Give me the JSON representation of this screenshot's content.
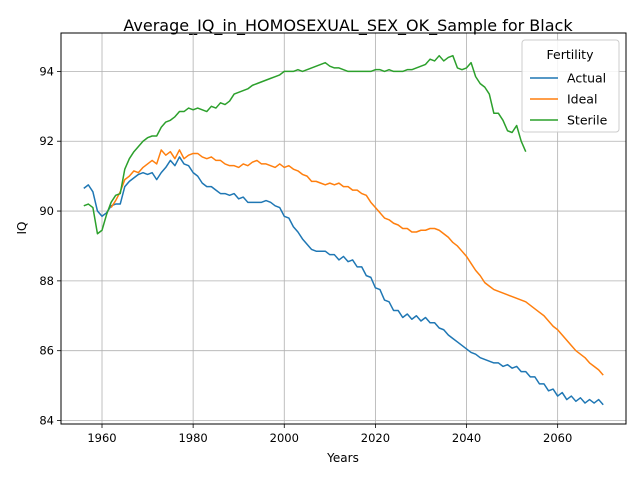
{
  "chart_data": {
    "type": "line",
    "title": "Average_IQ_in_HOMOSEXUAL_SEX_OK_Sample for Black",
    "xlabel": "Years",
    "ylabel": "IQ",
    "xlim": [
      1951,
      2075
    ],
    "ylim": [
      83.9,
      95.1
    ],
    "xticks": [
      1960,
      1980,
      2000,
      2020,
      2040,
      2060
    ],
    "yticks": [
      84,
      86,
      88,
      90,
      92,
      94
    ],
    "grid": true,
    "legend": {
      "title": "Fertility",
      "placement": "top-right"
    },
    "series": [
      {
        "name": "Actual",
        "color": "#1f77b4",
        "x": [
          1956,
          1957,
          1958,
          1959,
          1960,
          1961,
          1962,
          1963,
          1964,
          1965,
          1966,
          1967,
          1968,
          1969,
          1970,
          1971,
          1972,
          1973,
          1974,
          1975,
          1976,
          1977,
          1978,
          1979,
          1980,
          1981,
          1982,
          1983,
          1984,
          1985,
          1986,
          1987,
          1988,
          1989,
          1990,
          1991,
          1992,
          1993,
          1994,
          1995,
          1996,
          1997,
          1998,
          1999,
          2000,
          2001,
          2002,
          2003,
          2004,
          2005,
          2006,
          2007,
          2008,
          2009,
          2010,
          2011,
          2012,
          2013,
          2014,
          2015,
          2016,
          2017,
          2018,
          2019,
          2020,
          2021,
          2022,
          2023,
          2024,
          2025,
          2026,
          2027,
          2028,
          2029,
          2030,
          2031,
          2032,
          2033,
          2034,
          2035,
          2036,
          2037,
          2038,
          2039,
          2040,
          2041,
          2042,
          2043,
          2044,
          2045,
          2046,
          2047,
          2048,
          2049,
          2050,
          2051,
          2052,
          2053,
          2054,
          2055,
          2056,
          2057,
          2058,
          2059,
          2060,
          2061,
          2062,
          2063,
          2064,
          2065,
          2066,
          2067,
          2068,
          2069,
          2070
        ],
        "values": [
          90.65,
          90.75,
          90.55,
          90.0,
          89.85,
          89.95,
          90.15,
          90.2,
          90.2,
          90.7,
          90.85,
          90.95,
          91.05,
          91.1,
          91.05,
          91.1,
          90.9,
          91.1,
          91.25,
          91.45,
          91.3,
          91.55,
          91.35,
          91.3,
          91.1,
          91.0,
          90.8,
          90.7,
          90.7,
          90.6,
          90.5,
          90.5,
          90.45,
          90.5,
          90.35,
          90.4,
          90.25,
          90.25,
          90.25,
          90.25,
          90.3,
          90.25,
          90.15,
          90.1,
          89.85,
          89.8,
          89.55,
          89.4,
          89.2,
          89.05,
          88.9,
          88.85,
          88.85,
          88.85,
          88.75,
          88.75,
          88.6,
          88.7,
          88.55,
          88.6,
          88.4,
          88.4,
          88.15,
          88.1,
          87.8,
          87.75,
          87.45,
          87.4,
          87.15,
          87.15,
          86.95,
          87.05,
          86.9,
          87.0,
          86.85,
          86.95,
          86.8,
          86.8,
          86.65,
          86.6,
          86.45,
          86.35,
          86.25,
          86.15,
          86.05,
          85.95,
          85.9,
          85.8,
          85.75,
          85.7,
          85.65,
          85.65,
          85.55,
          85.6,
          85.5,
          85.55,
          85.4,
          85.4,
          85.25,
          85.25,
          85.05,
          85.05,
          84.85,
          84.9,
          84.7,
          84.8,
          84.6,
          84.7,
          84.55,
          84.65,
          84.5,
          84.6,
          84.5,
          84.6,
          84.45
        ]
      },
      {
        "name": "Ideal",
        "color": "#ff7f0e",
        "x": [
          1962,
          1963,
          1964,
          1965,
          1966,
          1967,
          1968,
          1969,
          1970,
          1971,
          1972,
          1973,
          1974,
          1975,
          1976,
          1977,
          1978,
          1979,
          1980,
          1981,
          1982,
          1983,
          1984,
          1985,
          1986,
          1987,
          1988,
          1989,
          1990,
          1991,
          1992,
          1993,
          1994,
          1995,
          1996,
          1997,
          1998,
          1999,
          2000,
          2001,
          2002,
          2003,
          2004,
          2005,
          2006,
          2007,
          2008,
          2009,
          2010,
          2011,
          2012,
          2013,
          2014,
          2015,
          2016,
          2017,
          2018,
          2019,
          2020,
          2021,
          2022,
          2023,
          2024,
          2025,
          2026,
          2027,
          2028,
          2029,
          2030,
          2031,
          2032,
          2033,
          2034,
          2035,
          2036,
          2037,
          2038,
          2039,
          2040,
          2041,
          2042,
          2043,
          2044,
          2045,
          2046,
          2047,
          2048,
          2049,
          2050,
          2051,
          2052,
          2053,
          2054,
          2055,
          2056,
          2057,
          2058,
          2059,
          2060,
          2061,
          2062,
          2063,
          2064,
          2065,
          2066,
          2067,
          2068,
          2069,
          2070
        ],
        "values": [
          90.1,
          90.3,
          90.55,
          90.9,
          91.0,
          91.15,
          91.1,
          91.25,
          91.35,
          91.45,
          91.35,
          91.75,
          91.6,
          91.7,
          91.5,
          91.75,
          91.5,
          91.6,
          91.65,
          91.65,
          91.55,
          91.5,
          91.55,
          91.45,
          91.45,
          91.35,
          91.3,
          91.3,
          91.25,
          91.35,
          91.3,
          91.4,
          91.45,
          91.35,
          91.35,
          91.3,
          91.25,
          91.35,
          91.25,
          91.3,
          91.2,
          91.15,
          91.05,
          91.0,
          90.85,
          90.85,
          90.8,
          90.75,
          90.8,
          90.75,
          90.8,
          90.7,
          90.7,
          90.6,
          90.6,
          90.5,
          90.45,
          90.25,
          90.1,
          89.95,
          89.8,
          89.75,
          89.65,
          89.6,
          89.5,
          89.5,
          89.4,
          89.4,
          89.45,
          89.45,
          89.5,
          89.5,
          89.45,
          89.35,
          89.25,
          89.1,
          89.0,
          88.85,
          88.7,
          88.5,
          88.3,
          88.15,
          87.95,
          87.85,
          87.75,
          87.7,
          87.65,
          87.6,
          87.55,
          87.5,
          87.45,
          87.4,
          87.3,
          87.2,
          87.1,
          87.0,
          86.85,
          86.7,
          86.6,
          86.45,
          86.3,
          86.15,
          86.0,
          85.9,
          85.8,
          85.65,
          85.55,
          85.45,
          85.3
        ]
      },
      {
        "name": "Sterile",
        "color": "#2ca02c",
        "x": [
          1956,
          1957,
          1958,
          1959,
          1960,
          1961,
          1962,
          1963,
          1964,
          1965,
          1966,
          1967,
          1968,
          1969,
          1970,
          1971,
          1972,
          1973,
          1974,
          1975,
          1976,
          1977,
          1978,
          1979,
          1980,
          1981,
          1982,
          1983,
          1984,
          1985,
          1986,
          1987,
          1988,
          1989,
          1990,
          1991,
          1992,
          1993,
          1994,
          1995,
          1996,
          1997,
          1998,
          1999,
          2000,
          2001,
          2002,
          2003,
          2004,
          2005,
          2006,
          2007,
          2008,
          2009,
          2010,
          2011,
          2012,
          2013,
          2014,
          2015,
          2016,
          2017,
          2018,
          2019,
          2020,
          2021,
          2022,
          2023,
          2024,
          2025,
          2026,
          2027,
          2028,
          2029,
          2030,
          2031,
          2032,
          2033,
          2034,
          2035,
          2036,
          2037,
          2038,
          2039,
          2040,
          2041,
          2042,
          2043,
          2044,
          2045,
          2046,
          2047,
          2048,
          2049,
          2050,
          2051,
          2052,
          2053
        ],
        "values": [
          90.15,
          90.2,
          90.1,
          89.35,
          89.45,
          89.9,
          90.25,
          90.45,
          90.5,
          91.2,
          91.5,
          91.7,
          91.85,
          92.0,
          92.1,
          92.15,
          92.15,
          92.4,
          92.55,
          92.6,
          92.7,
          92.85,
          92.85,
          92.95,
          92.9,
          92.95,
          92.9,
          92.85,
          93.0,
          92.95,
          93.1,
          93.05,
          93.15,
          93.35,
          93.4,
          93.45,
          93.5,
          93.6,
          93.65,
          93.7,
          93.75,
          93.8,
          93.85,
          93.9,
          94.0,
          94.0,
          94.0,
          94.05,
          94.0,
          94.05,
          94.1,
          94.15,
          94.2,
          94.25,
          94.15,
          94.1,
          94.1,
          94.05,
          94.0,
          94.0,
          94.0,
          94.0,
          94.0,
          94.0,
          94.05,
          94.05,
          94.0,
          94.05,
          94.0,
          94.0,
          94.0,
          94.05,
          94.05,
          94.1,
          94.15,
          94.2,
          94.35,
          94.3,
          94.45,
          94.3,
          94.4,
          94.45,
          94.1,
          94.05,
          94.1,
          94.25,
          93.85,
          93.65,
          93.55,
          93.35,
          92.8,
          92.8,
          92.6,
          92.3,
          92.25,
          92.45,
          92.0,
          91.7
        ]
      }
    ]
  }
}
